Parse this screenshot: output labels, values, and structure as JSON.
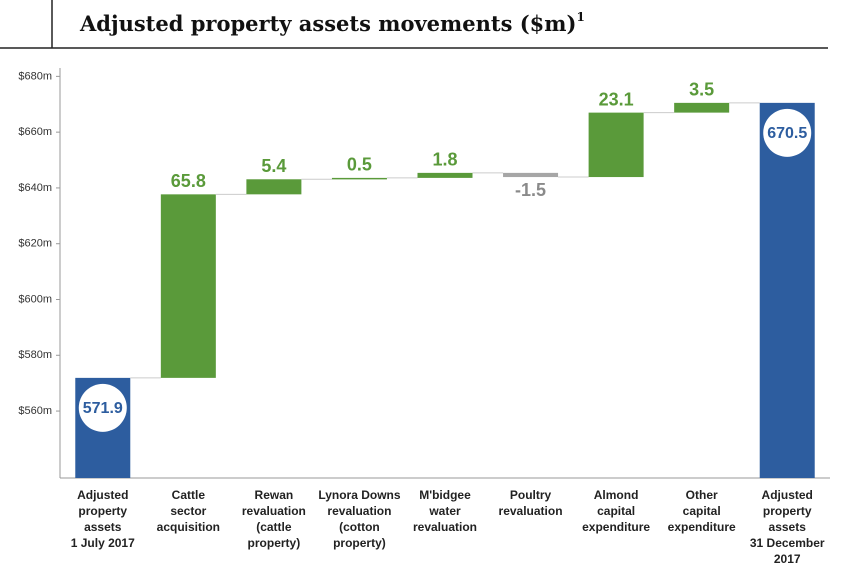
{
  "chart_data": {
    "type": "waterfall",
    "title": "Adjusted property assets movements ($m)",
    "title_footnote": "1",
    "categories": [
      [
        "Adjusted",
        "property",
        "assets",
        "1 July 2017"
      ],
      [
        "Cattle",
        "sector",
        "acquisition"
      ],
      [
        "Rewan",
        "revaluation",
        "(cattle",
        "property)"
      ],
      [
        "Lynora Downs",
        "revaluation",
        "(cotton",
        "property)"
      ],
      [
        "M'bidgee",
        "water",
        "revaluation"
      ],
      [
        "Poultry",
        "revaluation"
      ],
      [
        "Almond",
        "capital",
        "expenditure"
      ],
      [
        "Other",
        "capital",
        "expenditure"
      ],
      [
        "Adjusted",
        "property",
        "assets",
        "31 December",
        "2017"
      ]
    ],
    "values": [
      571.9,
      65.8,
      5.4,
      0.5,
      1.8,
      -1.5,
      23.1,
      3.5,
      670.5
    ],
    "measure": [
      "absolute",
      "relative",
      "relative",
      "relative",
      "relative",
      "relative",
      "relative",
      "relative",
      "total"
    ],
    "colors": {
      "total": "#2d5d9f",
      "increase": "#5a9a3a",
      "decrease": "#a6a6a6"
    },
    "ylim": [
      536,
      683
    ],
    "yticks": [
      {
        "value": 560,
        "label": "$560m"
      },
      {
        "value": 580,
        "label": "$580m"
      },
      {
        "value": 600,
        "label": "$600m"
      },
      {
        "value": 620,
        "label": "$620m"
      },
      {
        "value": 640,
        "label": "$640m"
      },
      {
        "value": 660,
        "label": "$660m"
      },
      {
        "value": 680,
        "label": "$680m"
      }
    ]
  }
}
